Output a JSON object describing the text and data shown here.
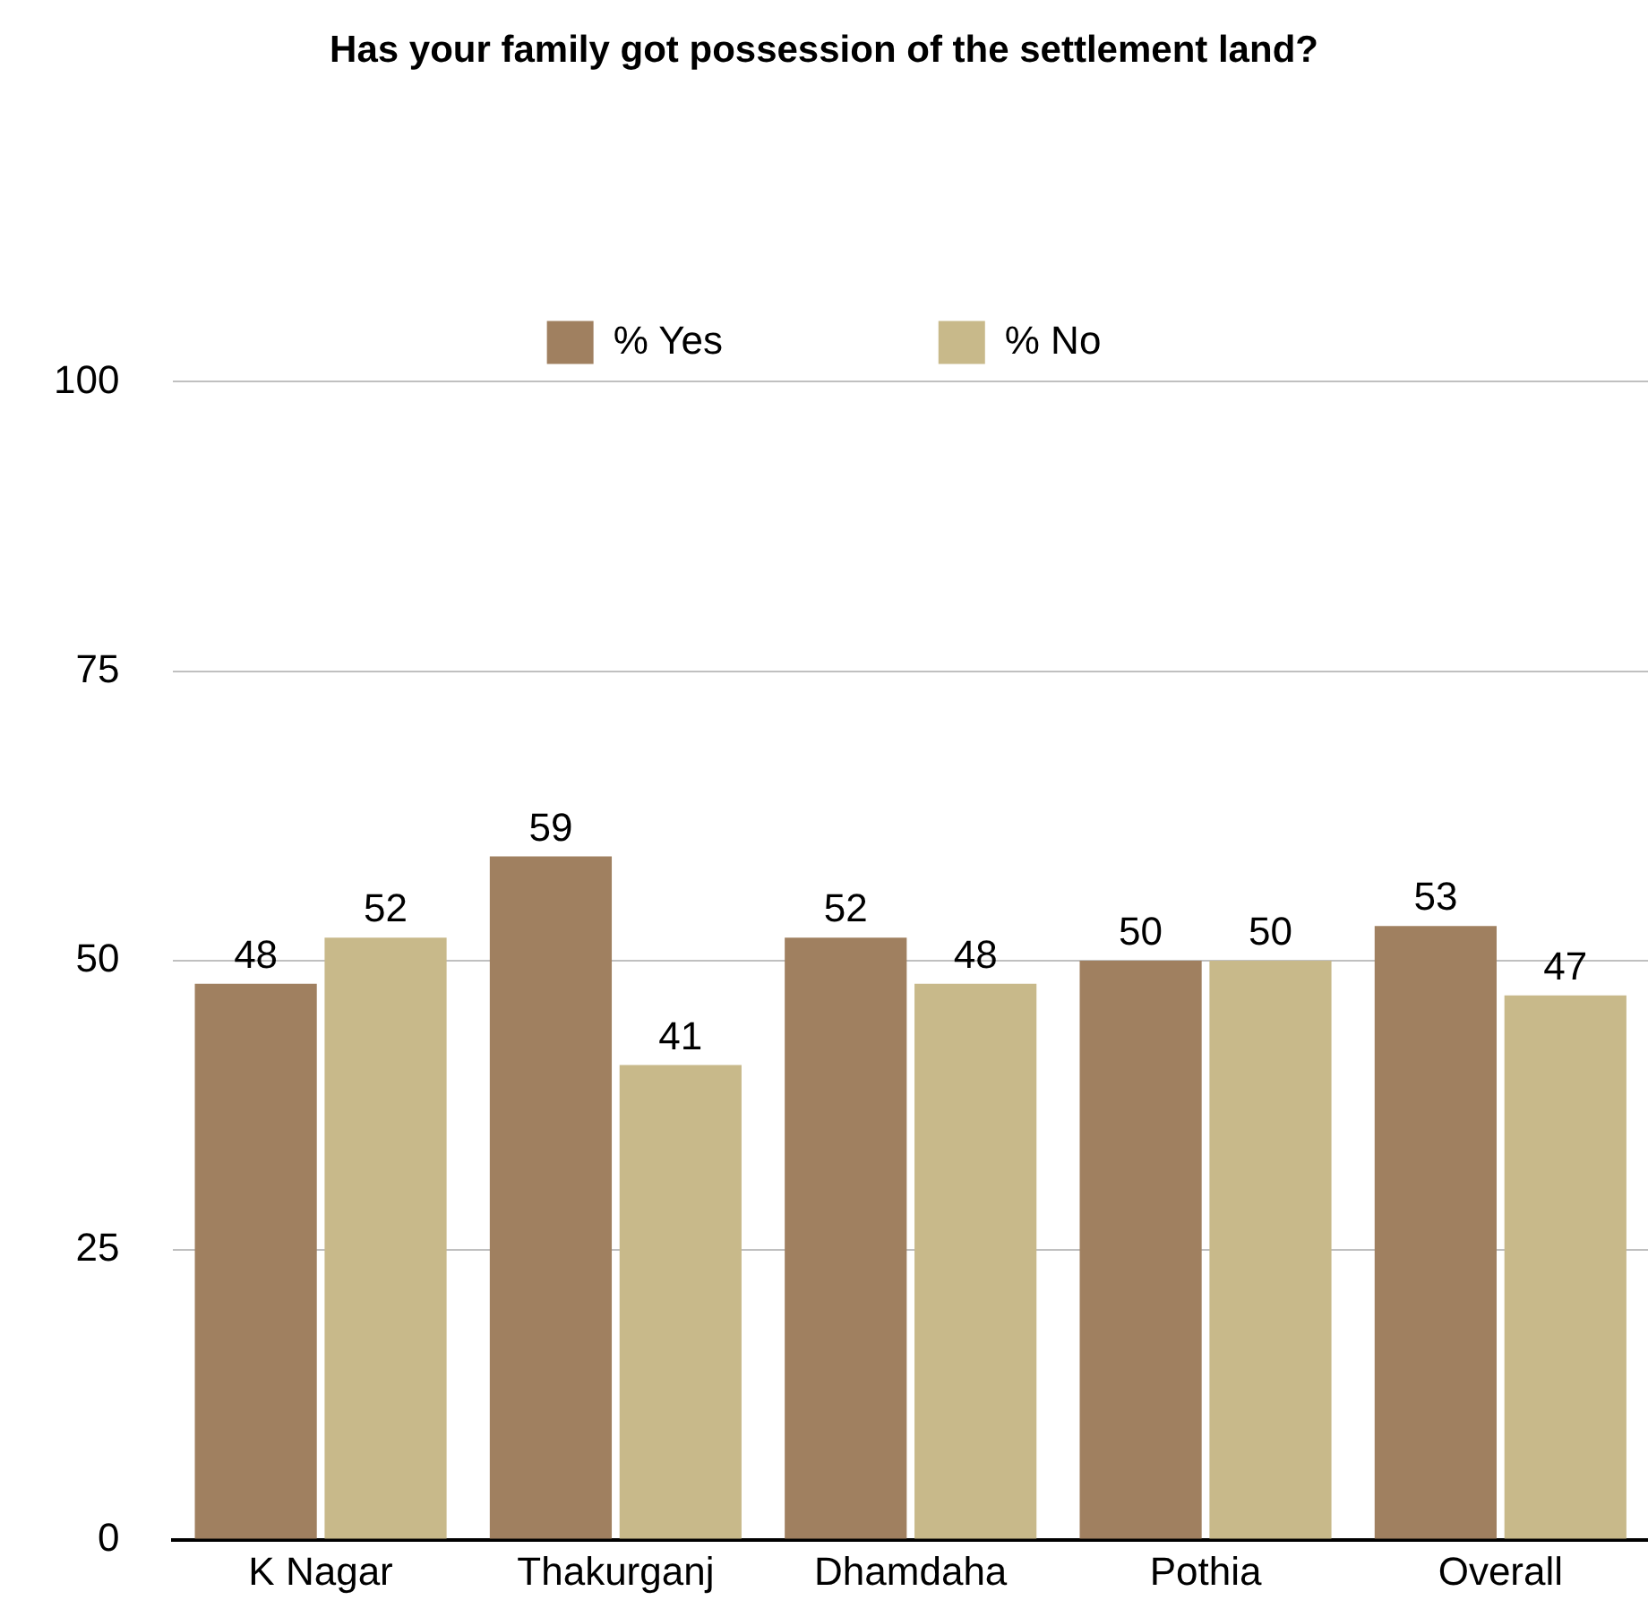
{
  "chart_data": {
    "type": "bar",
    "title": "Has your family got possession of the settlement land?",
    "categories": [
      "K Nagar",
      "Thakurganj",
      "Dhamdaha",
      "Pothia",
      "Overall"
    ],
    "series": [
      {
        "name": "% Yes",
        "color": "#a08060",
        "values": [
          48,
          59,
          52,
          50,
          53
        ]
      },
      {
        "name": "% No",
        "color": "#c8b98a",
        "values": [
          52,
          41,
          48,
          50,
          47
        ]
      }
    ],
    "ylim": [
      0,
      100
    ],
    "yticks": [
      0,
      25,
      50,
      75,
      100
    ],
    "grid": "y",
    "legend": "top",
    "data_labels": true
  }
}
